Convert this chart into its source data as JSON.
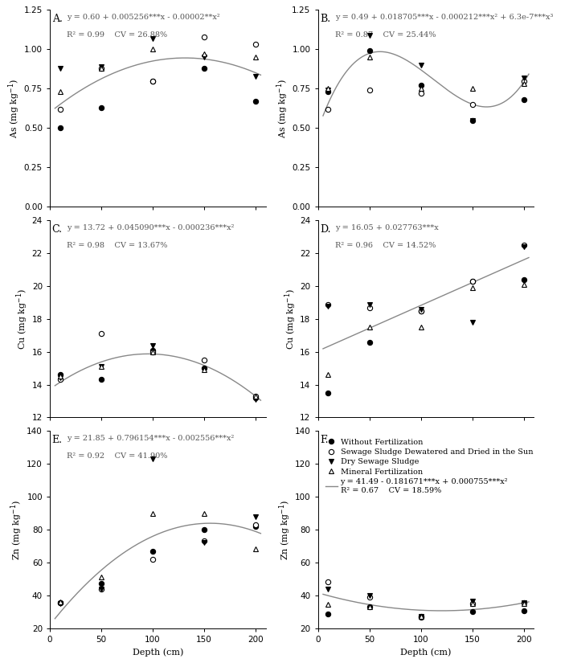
{
  "panels": [
    {
      "label": "A.",
      "ylabel": "As (mg kg$^{-1}$)",
      "ylim": [
        0.0,
        1.25
      ],
      "yticks": [
        0.0,
        0.25,
        0.5,
        0.75,
        1.0,
        1.25
      ],
      "equation": "y = 0.60 + 0.005256***x - 0.00002**x²",
      "r2cv": "R² = 0.99    CV = 26.88%",
      "poly": [
        0.6,
        0.005256,
        -2e-05
      ],
      "scatter": {
        "filled_circle": [
          0.5,
          0.63,
          0.8,
          0.88,
          0.67
        ],
        "open_circle": [
          0.62,
          0.88,
          0.8,
          1.08,
          1.03
        ],
        "filled_tri": [
          0.88,
          0.89,
          1.07,
          0.95,
          0.83
        ],
        "open_tri": [
          0.73,
          0.88,
          1.0,
          0.97,
          0.95
        ]
      },
      "show_legend": false
    },
    {
      "label": "B.",
      "ylabel": "As (mg kg$^{-1}$)",
      "ylim": [
        0.0,
        1.25
      ],
      "yticks": [
        0.0,
        0.25,
        0.5,
        0.75,
        1.0,
        1.25
      ],
      "equation": "y = 0.49 + 0.018705***x - 0.000212***x² + 6.3e-7***x³",
      "r2cv": "R² = 0.87    CV = 25.44%",
      "poly": [
        0.49,
        0.018705,
        -0.000212,
        6.3e-07
      ],
      "scatter": {
        "filled_circle": [
          0.73,
          0.99,
          0.77,
          0.55,
          0.68
        ],
        "open_circle": [
          0.62,
          0.74,
          0.72,
          0.65,
          0.8
        ],
        "filled_tri": [
          0.74,
          1.09,
          0.9,
          0.55,
          0.82
        ],
        "open_tri": [
          0.75,
          0.95,
          0.75,
          0.75,
          0.78
        ]
      },
      "show_legend": false
    },
    {
      "label": "C.",
      "ylabel": "Cu (mg kg$^{-1}$)",
      "ylim": [
        12,
        24
      ],
      "yticks": [
        12,
        14,
        16,
        18,
        20,
        22,
        24
      ],
      "equation": "y = 13.72 + 0.045090***x - 0.000236***x²",
      "r2cv": "R² = 0.98    CV = 13.67%",
      "poly": [
        13.72,
        0.04509,
        -0.000236
      ],
      "scatter": {
        "filled_circle": [
          14.6,
          14.3,
          16.1,
          15.0,
          13.2
        ],
        "open_circle": [
          14.3,
          17.1,
          16.0,
          15.5,
          13.3
        ],
        "filled_tri": [
          14.4,
          15.1,
          16.4,
          14.9,
          13.1
        ],
        "open_tri": [
          14.5,
          15.1,
          16.0,
          14.9,
          13.3
        ]
      },
      "show_legend": false
    },
    {
      "label": "D.",
      "ylabel": "Cu (mg kg$^{-1}$)",
      "ylim": [
        12,
        24
      ],
      "yticks": [
        12,
        14,
        16,
        18,
        20,
        22,
        24
      ],
      "equation": "y = 16.05 + 0.027763***x",
      "r2cv": "R² = 0.96    CV = 14.52%",
      "poly": [
        16.05,
        0.027763
      ],
      "scatter": {
        "filled_circle": [
          13.5,
          16.6,
          18.5,
          20.3,
          20.4
        ],
        "open_circle": [
          18.9,
          18.7,
          18.5,
          20.3,
          22.5
        ],
        "filled_tri": [
          18.8,
          18.9,
          18.6,
          17.8,
          22.4
        ],
        "open_tri": [
          14.6,
          17.5,
          17.5,
          19.9,
          20.1
        ]
      },
      "show_legend": false
    },
    {
      "label": "E.",
      "ylabel": "Zn (mg kg$^{-1}$)",
      "ylim": [
        20,
        140
      ],
      "yticks": [
        20,
        40,
        60,
        80,
        100,
        120,
        140
      ],
      "equation": "y = 21.85 + 0.796154***x - 0.002556***x²",
      "r2cv": "R² = 0.92    CV = 41.90%",
      "poly": [
        21.85,
        0.796154,
        -0.002556
      ],
      "scatter": {
        "filled_circle": [
          35.5,
          47.0,
          67.0,
          80.0,
          82.0
        ],
        "open_circle": [
          35.5,
          44.0,
          62.0,
          73.0,
          83.0
        ],
        "filled_tri": [
          35.0,
          44.0,
          123.0,
          72.0,
          88.0
        ],
        "open_tri": [
          36.0,
          51.0,
          90.0,
          90.0,
          68.0
        ]
      },
      "show_legend": false
    },
    {
      "label": "F.",
      "ylabel": "Zn (mg kg$^{-1}$)",
      "ylim": [
        20,
        140
      ],
      "yticks": [
        20,
        40,
        60,
        80,
        100,
        120,
        140
      ],
      "equation": "y = 41.49 - 0.181671***x + 0.000755***x²",
      "r2cv": "R² = 0.67    CV = 18.59%",
      "poly": [
        41.49,
        -0.181671,
        0.000755
      ],
      "scatter": {
        "filled_circle": [
          28.5,
          33.0,
          26.5,
          30.0,
          30.5
        ],
        "open_circle": [
          48.0,
          39.0,
          27.0,
          35.0,
          35.5
        ],
        "filled_tri": [
          44.0,
          40.0,
          27.0,
          36.5,
          35.5
        ],
        "open_tri": [
          34.5,
          33.0,
          27.0,
          35.0,
          35.0
        ]
      },
      "show_legend": true
    }
  ],
  "x_data": [
    10,
    50,
    100,
    150,
    200
  ],
  "xlabel": "Depth (cm)",
  "legend_labels": [
    "Without Fertilization",
    "Sewage Sludge Dewatered and Dried in the Sun",
    "Dry Sewage Sludge",
    "Mineral Fertilization"
  ],
  "line_color": "#888888",
  "text_color": "#555555"
}
